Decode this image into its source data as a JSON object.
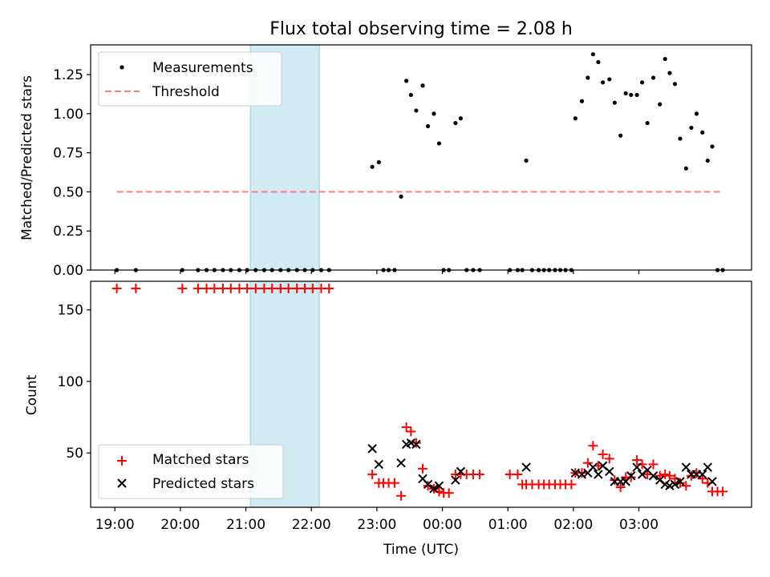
{
  "title": "Flux total observing time = 2.08 h",
  "colors": {
    "measurement": "#000000",
    "threshold": "#ff7f7f",
    "matched": "#ff0000",
    "predicted": "#000000",
    "window_fill": "#add8e6"
  },
  "chart_data": [
    {
      "type": "scatter",
      "panel": "top",
      "ylabel": "Matched/Predicted stars",
      "ylim": [
        0,
        1.44
      ],
      "yticks": [
        "0.00",
        "0.25",
        "0.50",
        "0.75",
        "1.00",
        "1.25"
      ],
      "legend_placement": "upper-left",
      "x_unit": "hours since 19:00 UTC",
      "observing_window": [
        2.07,
        3.12
      ],
      "series": [
        {
          "name": "Measurements",
          "marker": "dot",
          "points": [
            [
              0.03,
              0
            ],
            [
              0.32,
              0
            ],
            [
              1.03,
              0
            ],
            [
              1.27,
              0
            ],
            [
              1.4,
              0
            ],
            [
              1.52,
              0
            ],
            [
              1.65,
              0
            ],
            [
              1.77,
              0
            ],
            [
              1.9,
              0
            ],
            [
              2.02,
              0
            ],
            [
              2.15,
              0
            ],
            [
              2.28,
              0
            ],
            [
              2.4,
              0
            ],
            [
              2.53,
              0
            ],
            [
              2.65,
              0
            ],
            [
              2.78,
              0
            ],
            [
              2.9,
              0
            ],
            [
              3.02,
              0
            ],
            [
              3.15,
              0
            ],
            [
              3.27,
              0
            ],
            [
              3.93,
              0.66
            ],
            [
              4.03,
              0.69
            ],
            [
              4.1,
              0
            ],
            [
              4.18,
              0
            ],
            [
              4.27,
              0
            ],
            [
              4.37,
              0.47
            ],
            [
              4.45,
              1.21
            ],
            [
              4.52,
              1.12
            ],
            [
              4.6,
              1.02
            ],
            [
              4.7,
              1.18
            ],
            [
              4.78,
              0.92
            ],
            [
              4.87,
              1.0
            ],
            [
              4.95,
              0.81
            ],
            [
              5.02,
              0
            ],
            [
              5.1,
              0
            ],
            [
              5.2,
              0.94
            ],
            [
              5.28,
              0.97
            ],
            [
              5.37,
              0
            ],
            [
              5.47,
              0
            ],
            [
              5.57,
              0
            ],
            [
              6.03,
              0
            ],
            [
              6.15,
              0
            ],
            [
              6.22,
              0
            ],
            [
              6.28,
              0.7
            ],
            [
              6.37,
              0
            ],
            [
              6.47,
              0
            ],
            [
              6.55,
              0
            ],
            [
              6.63,
              0
            ],
            [
              6.72,
              0
            ],
            [
              6.8,
              0
            ],
            [
              6.88,
              0
            ],
            [
              6.97,
              0
            ],
            [
              7.03,
              0.97
            ],
            [
              7.13,
              1.08
            ],
            [
              7.22,
              1.23
            ],
            [
              7.3,
              1.38
            ],
            [
              7.38,
              1.33
            ],
            [
              7.45,
              1.2
            ],
            [
              7.55,
              1.22
            ],
            [
              7.63,
              1.07
            ],
            [
              7.72,
              0.86
            ],
            [
              7.8,
              1.13
            ],
            [
              7.88,
              1.12
            ],
            [
              7.97,
              1.12
            ],
            [
              8.05,
              1.2
            ],
            [
              8.13,
              0.94
            ],
            [
              8.22,
              1.23
            ],
            [
              8.32,
              1.06
            ],
            [
              8.4,
              1.35
            ],
            [
              8.47,
              1.26
            ],
            [
              8.55,
              1.19
            ],
            [
              8.63,
              0.84
            ],
            [
              8.72,
              0.65
            ],
            [
              8.8,
              0.91
            ],
            [
              8.88,
              1.0
            ],
            [
              8.97,
              0.88
            ],
            [
              9.05,
              0.7
            ],
            [
              9.12,
              0.79
            ],
            [
              9.2,
              0
            ],
            [
              9.28,
              0
            ]
          ]
        },
        {
          "name": "Threshold",
          "style": "dashed",
          "points": [
            [
              0.03,
              0.5
            ],
            [
              9.28,
              0.5
            ]
          ]
        }
      ]
    },
    {
      "type": "scatter",
      "panel": "bottom",
      "ylabel": "Count",
      "xlabel": "Time (UTC)",
      "xlim": [
        -0.37,
        9.72
      ],
      "ylim": [
        12,
        170
      ],
      "yticks": [
        "50",
        "100",
        "150"
      ],
      "xticks": [
        {
          "h": 0,
          "label": "19:00"
        },
        {
          "h": 1,
          "label": "20:00"
        },
        {
          "h": 2,
          "label": "21:00"
        },
        {
          "h": 3,
          "label": "22:00"
        },
        {
          "h": 4,
          "label": "23:00"
        },
        {
          "h": 5,
          "label": "00:00"
        },
        {
          "h": 6,
          "label": "01:00"
        },
        {
          "h": 7,
          "label": "02:00"
        },
        {
          "h": 8,
          "label": "03:00"
        }
      ],
      "legend_placement": "lower-left",
      "series": [
        {
          "name": "Matched stars",
          "marker": "plus",
          "points": [
            [
              0.03,
              165
            ],
            [
              0.32,
              165
            ],
            [
              1.03,
              165
            ],
            [
              1.27,
              165
            ],
            [
              1.4,
              165
            ],
            [
              1.52,
              165
            ],
            [
              1.65,
              165
            ],
            [
              1.77,
              165
            ],
            [
              1.9,
              165
            ],
            [
              2.02,
              165
            ],
            [
              2.15,
              165
            ],
            [
              2.28,
              165
            ],
            [
              2.4,
              165
            ],
            [
              2.53,
              165
            ],
            [
              2.65,
              165
            ],
            [
              2.78,
              165
            ],
            [
              2.9,
              165
            ],
            [
              3.02,
              165
            ],
            [
              3.15,
              165
            ],
            [
              3.27,
              165
            ],
            [
              3.93,
              35
            ],
            [
              4.03,
              29
            ],
            [
              4.1,
              29
            ],
            [
              4.18,
              29
            ],
            [
              4.27,
              29
            ],
            [
              4.37,
              20
            ],
            [
              4.45,
              68
            ],
            [
              4.52,
              65
            ],
            [
              4.6,
              57
            ],
            [
              4.7,
              39
            ],
            [
              4.78,
              27
            ],
            [
              4.87,
              25
            ],
            [
              4.95,
              23
            ],
            [
              5.02,
              22
            ],
            [
              5.1,
              22
            ],
            [
              5.2,
              35
            ],
            [
              5.28,
              35
            ],
            [
              5.37,
              35
            ],
            [
              5.47,
              35
            ],
            [
              5.57,
              35
            ],
            [
              6.03,
              35
            ],
            [
              6.15,
              35
            ],
            [
              6.22,
              28
            ],
            [
              6.28,
              28
            ],
            [
              6.37,
              28
            ],
            [
              6.47,
              28
            ],
            [
              6.55,
              28
            ],
            [
              6.63,
              28
            ],
            [
              6.72,
              28
            ],
            [
              6.8,
              28
            ],
            [
              6.88,
              28
            ],
            [
              6.97,
              28
            ],
            [
              7.03,
              36
            ],
            [
              7.13,
              36
            ],
            [
              7.22,
              43
            ],
            [
              7.3,
              55
            ],
            [
              7.38,
              41
            ],
            [
              7.45,
              49
            ],
            [
              7.55,
              46
            ],
            [
              7.63,
              31
            ],
            [
              7.72,
              26
            ],
            [
              7.8,
              33
            ],
            [
              7.88,
              33
            ],
            [
              7.97,
              45
            ],
            [
              8.05,
              42
            ],
            [
              8.13,
              35
            ],
            [
              8.22,
              42
            ],
            [
              8.32,
              34
            ],
            [
              8.4,
              35
            ],
            [
              8.47,
              34
            ],
            [
              8.55,
              32
            ],
            [
              8.63,
              29
            ],
            [
              8.72,
              27
            ],
            [
              8.8,
              34
            ],
            [
              8.88,
              36
            ],
            [
              8.97,
              32
            ],
            [
              9.05,
              29
            ],
            [
              9.12,
              23
            ],
            [
              9.2,
              23
            ],
            [
              9.28,
              23
            ]
          ]
        },
        {
          "name": "Predicted stars",
          "marker": "x",
          "points": [
            [
              3.93,
              53
            ],
            [
              4.03,
              42
            ],
            [
              4.37,
              43
            ],
            [
              4.45,
              56
            ],
            [
              4.52,
              57
            ],
            [
              4.6,
              56
            ],
            [
              4.7,
              32
            ],
            [
              4.78,
              28
            ],
            [
              4.87,
              25
            ],
            [
              4.95,
              27
            ],
            [
              5.2,
              31
            ],
            [
              5.28,
              37
            ],
            [
              6.28,
              40
            ],
            [
              7.03,
              36
            ],
            [
              7.13,
              35
            ],
            [
              7.22,
              36
            ],
            [
              7.3,
              40
            ],
            [
              7.38,
              35
            ],
            [
              7.45,
              41
            ],
            [
              7.55,
              37
            ],
            [
              7.63,
              30
            ],
            [
              7.72,
              30
            ],
            [
              7.8,
              30
            ],
            [
              7.88,
              34
            ],
            [
              7.97,
              40
            ],
            [
              8.05,
              35
            ],
            [
              8.13,
              38
            ],
            [
              8.22,
              34
            ],
            [
              8.32,
              31
            ],
            [
              8.4,
              28
            ],
            [
              8.47,
              27
            ],
            [
              8.55,
              28
            ],
            [
              8.63,
              30
            ],
            [
              8.72,
              40
            ],
            [
              8.8,
              35
            ],
            [
              8.88,
              35
            ],
            [
              8.97,
              35
            ],
            [
              9.05,
              40
            ],
            [
              9.12,
              30
            ]
          ]
        }
      ]
    }
  ]
}
